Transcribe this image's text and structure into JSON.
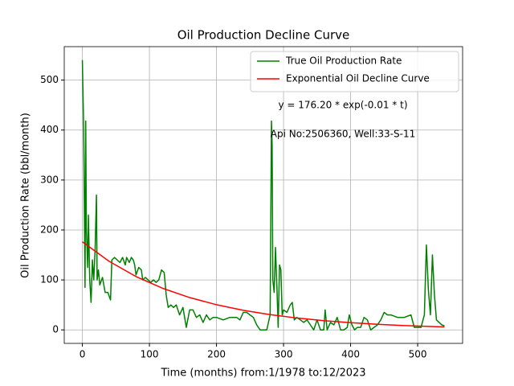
{
  "chart_data": {
    "type": "line",
    "title": "Oil Production Decline Curve",
    "x_label": "Time (months) from:1/1978 to:12/2023",
    "y_label": "Oil Production Rate (bbl/month)",
    "annotations": [
      "y = 176.20 * exp(-0.01 * t)",
      "Api No:2506360, Well:33-S-11"
    ],
    "xlim": [
      -27,
      567
    ],
    "ylim": [
      -27,
      567
    ],
    "xticks": [
      0,
      100,
      200,
      300,
      400,
      500
    ],
    "yticks": [
      0,
      100,
      200,
      300,
      400,
      500
    ],
    "grid": true,
    "legend": "upper right",
    "series": [
      {
        "name": "True Oil Production Rate",
        "color": "#008000",
        "x": [
          0,
          2,
          4,
          5,
          6,
          8,
          9,
          11,
          13,
          15,
          17,
          19,
          21,
          22,
          24,
          26,
          30,
          34,
          38,
          42,
          44,
          48,
          52,
          56,
          60,
          64,
          66,
          70,
          73,
          76,
          78,
          80,
          84,
          88,
          90,
          94,
          98,
          102,
          106,
          110,
          114,
          118,
          122,
          125,
          128,
          132,
          136,
          140,
          145,
          150,
          155,
          160,
          165,
          170,
          175,
          180,
          185,
          190,
          195,
          200,
          210,
          220,
          230,
          235,
          240,
          245,
          250,
          255,
          260,
          265,
          270,
          275,
          280,
          282,
          283,
          284,
          286,
          288,
          290,
          292,
          294,
          296,
          298,
          300,
          305,
          310,
          313,
          316,
          320,
          325,
          330,
          335,
          340,
          345,
          350,
          355,
          360,
          362,
          365,
          370,
          375,
          380,
          385,
          390,
          395,
          398,
          402,
          406,
          410,
          415,
          420,
          425,
          430,
          435,
          440,
          445,
          450,
          455,
          460,
          470,
          480,
          490,
          495,
          500,
          505,
          510,
          513,
          516,
          519,
          522,
          525,
          528,
          532,
          536,
          540
        ],
        "values": [
          540,
          400,
          85,
          418,
          200,
          125,
          230,
          100,
          55,
          140,
          100,
          160,
          270,
          100,
          120,
          90,
          105,
          75,
          75,
          60,
          140,
          145,
          140,
          135,
          145,
          130,
          145,
          135,
          145,
          140,
          130,
          110,
          125,
          120,
          100,
          105,
          100,
          95,
          100,
          95,
          100,
          120,
          115,
          70,
          45,
          50,
          45,
          50,
          30,
          45,
          5,
          40,
          40,
          25,
          30,
          15,
          30,
          20,
          25,
          25,
          20,
          25,
          25,
          20,
          35,
          35,
          30,
          25,
          10,
          0,
          0,
          0,
          30,
          418,
          370,
          100,
          75,
          165,
          90,
          5,
          130,
          120,
          30,
          40,
          35,
          50,
          55,
          20,
          25,
          20,
          15,
          20,
          10,
          0,
          20,
          0,
          0,
          40,
          0,
          15,
          10,
          25,
          0,
          0,
          5,
          30,
          10,
          0,
          5,
          5,
          25,
          20,
          0,
          5,
          10,
          20,
          35,
          30,
          30,
          25,
          25,
          30,
          5,
          5,
          5,
          30,
          170,
          80,
          30,
          150,
          70,
          20,
          15,
          10,
          8
        ]
      },
      {
        "name": "Exponential Oil Decline Curve",
        "color": "#ff0000",
        "x": [
          0,
          40,
          80,
          120,
          160,
          200,
          240,
          280,
          320,
          360,
          400,
          440,
          480,
          520,
          540
        ],
        "values": [
          176.2,
          137.2,
          106.8,
          83.1,
          64.7,
          50.4,
          39.2,
          30.5,
          23.8,
          18.5,
          14.4,
          11.2,
          8.7,
          6.8,
          6.0
        ]
      }
    ]
  }
}
